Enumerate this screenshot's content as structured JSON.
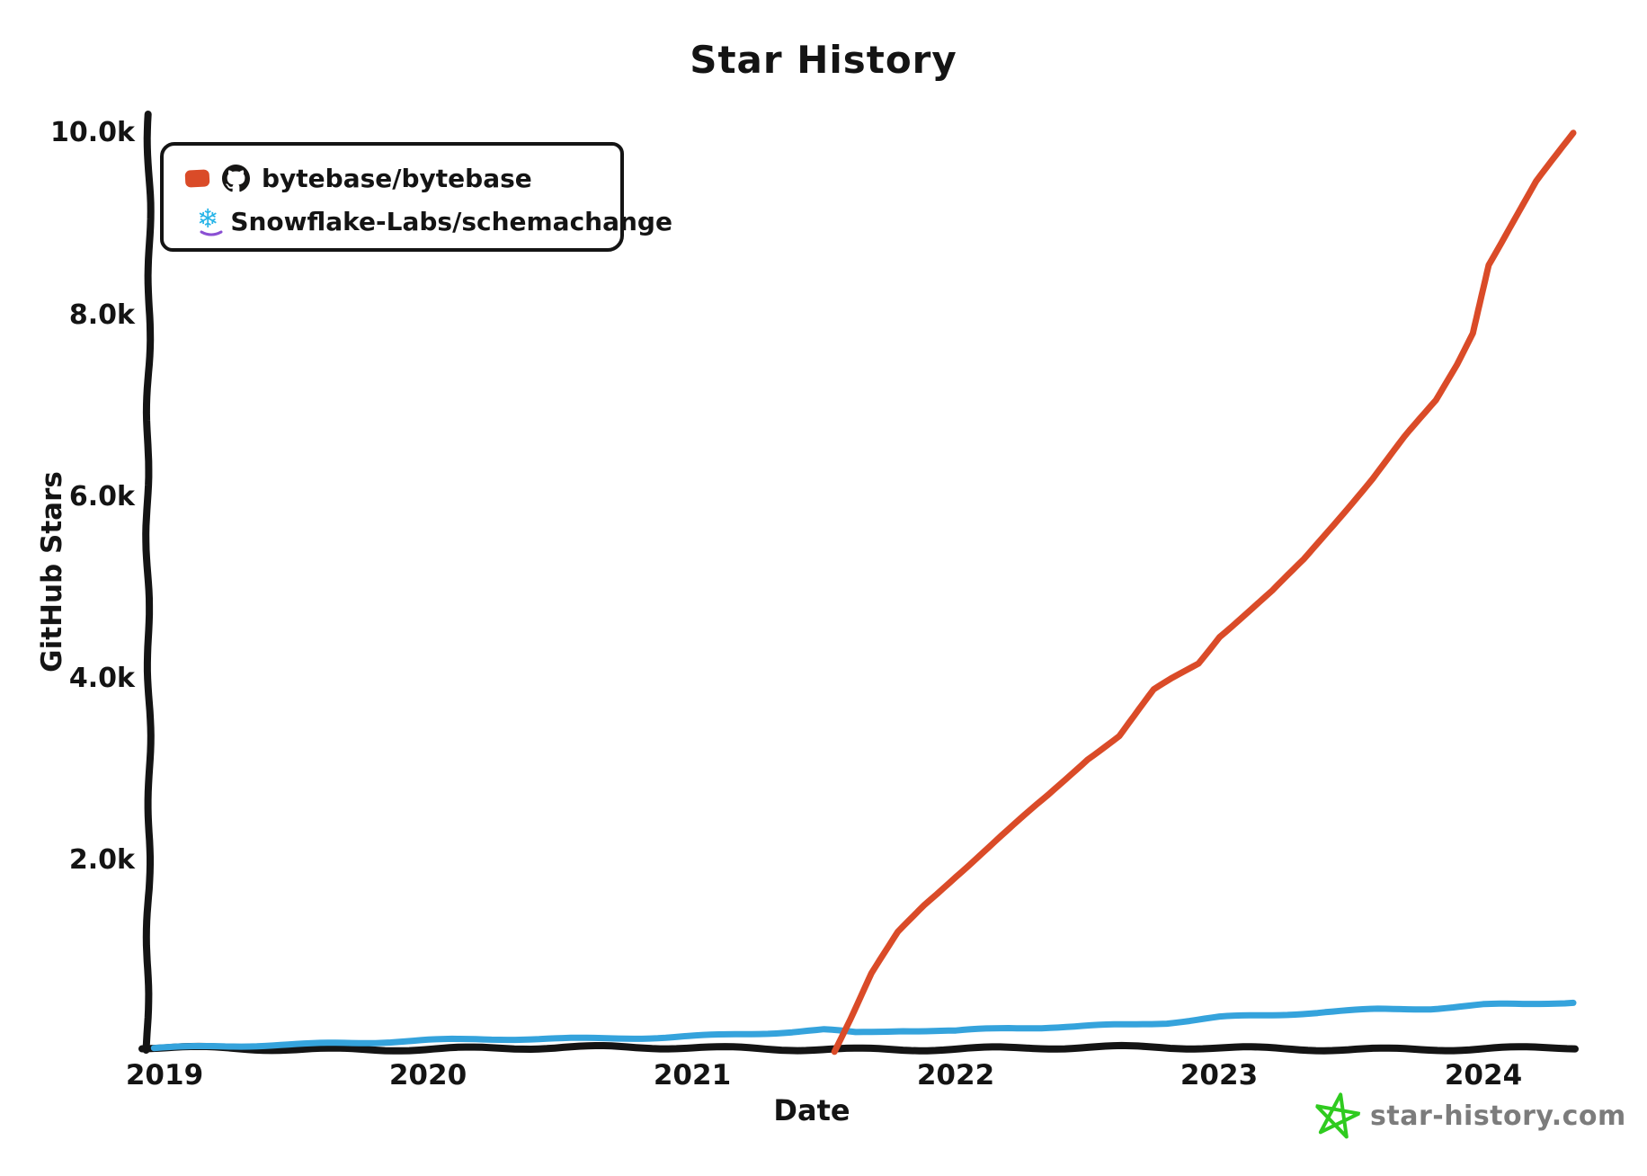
{
  "title": "Star History",
  "axes": {
    "x": {
      "label": "Date",
      "tick_labels": [
        "2019",
        "2020",
        "2021",
        "2022",
        "2023",
        "2024"
      ]
    },
    "y": {
      "label": "GitHub Stars",
      "tick_labels": [
        "2.0k",
        "4.0k",
        "6.0k",
        "8.0k",
        "10.0k"
      ]
    }
  },
  "legend": {
    "items": [
      {
        "label": "bytebase/bytebase",
        "swatch_color": "#DA4B28",
        "avatar_icon": "github-octocat-icon"
      },
      {
        "label": "Snowflake-Labs/schemachange",
        "swatch_color": "#35A3DC",
        "avatar_icon": "snowflake-icon"
      }
    ]
  },
  "watermark": {
    "label": "star-history.com",
    "star_color": "#2FCB1F",
    "text_color": "#7C7C7C"
  },
  "colors": {
    "axis": "#141414",
    "background": "#ffffff"
  },
  "chart_data": {
    "type": "line",
    "title": "Star History",
    "xlabel": "Date",
    "ylabel": "GitHub Stars",
    "x_unit": "decimal_year",
    "xlim": [
      2018.94,
      2024.38
    ],
    "ylim": [
      0,
      10300
    ],
    "grid": false,
    "legend_position": "top-left",
    "y_tick_values": [
      2000,
      4000,
      6000,
      8000,
      10000
    ],
    "x_tick_values": [
      2019,
      2020,
      2021,
      2022,
      2023,
      2024
    ],
    "series": [
      {
        "name": "bytebase/bytebase",
        "color": "#DA4B28",
        "x": [
          2021.54,
          2021.6,
          2021.68,
          2021.78,
          2021.88,
          2022.0,
          2022.15,
          2022.35,
          2022.5,
          2022.62,
          2022.75,
          2022.82,
          2022.92,
          2023.0,
          2023.1,
          2023.2,
          2023.32,
          2023.45,
          2023.58,
          2023.7,
          2023.82,
          2023.9,
          2023.96,
          2024.02,
          2024.1,
          2024.2,
          2024.28,
          2024.35
        ],
        "y_stars": [
          0,
          350,
          850,
          1300,
          1600,
          1920,
          2300,
          2800,
          3200,
          3450,
          3950,
          4080,
          4250,
          4550,
          4800,
          5050,
          5400,
          5850,
          6300,
          6750,
          7150,
          7550,
          7900,
          8650,
          9050,
          9550,
          9850,
          10080
        ]
      },
      {
        "name": "Snowflake-Labs/schemachange",
        "color": "#35A3DC",
        "x": [
          2018.96,
          2019.2,
          2019.5,
          2019.8,
          2020.0,
          2020.3,
          2020.6,
          2020.9,
          2021.1,
          2021.35,
          2021.5,
          2021.62,
          2021.8,
          2022.0,
          2022.2,
          2022.45,
          2022.6,
          2022.8,
          2023.0,
          2023.2,
          2023.4,
          2023.6,
          2023.8,
          2024.0,
          2024.15,
          2024.35
        ],
        "y_stars": [
          30,
          50,
          60,
          80,
          100,
          120,
          130,
          150,
          170,
          200,
          220,
          185,
          210,
          200,
          240,
          260,
          280,
          310,
          370,
          390,
          420,
          440,
          450,
          490,
          500,
          530
        ]
      }
    ]
  }
}
